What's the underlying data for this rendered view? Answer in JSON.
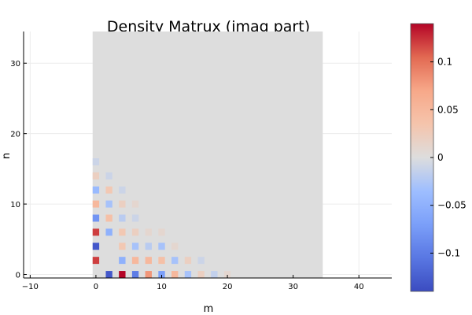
{
  "chart_data": {
    "type": "heatmap",
    "title": "Density Matrux (imag part)",
    "xlabel": "m",
    "ylabel": "n",
    "xlim": [
      -11,
      45
    ],
    "ylim": [
      -0.5,
      34.5
    ],
    "x_ticks": [
      -10,
      0,
      10,
      20,
      30,
      40
    ],
    "y_ticks": [
      0,
      10,
      20,
      30
    ],
    "grid": true,
    "matrix_extent": {
      "m": [
        -0.5,
        34.5
      ],
      "n": [
        -0.5,
        34.5
      ]
    },
    "background_value": 0,
    "colorbar": {
      "colormap": "coolwarm",
      "range": [
        -0.14,
        0.14
      ],
      "ticks": [
        {
          "value": 0.1,
          "label": "0.1"
        },
        {
          "value": 0.05,
          "label": "0.05"
        },
        {
          "value": 0,
          "label": "0"
        },
        {
          "value": -0.05,
          "label": "−0.05"
        },
        {
          "value": -0.1,
          "label": "−0.1"
        }
      ]
    },
    "cells": [
      {
        "m": 0,
        "n": 2,
        "v": 0.12
      },
      {
        "m": 0,
        "n": 4,
        "v": -0.13
      },
      {
        "m": 0,
        "n": 6,
        "v": 0.12
      },
      {
        "m": 0,
        "n": 8,
        "v": -0.08
      },
      {
        "m": 0,
        "n": 10,
        "v": 0.05
      },
      {
        "m": 0,
        "n": 12,
        "v": -0.04
      },
      {
        "m": 0,
        "n": 14,
        "v": 0.02
      },
      {
        "m": 0,
        "n": 16,
        "v": -0.01
      },
      {
        "m": 2,
        "n": 0,
        "v": -0.13
      },
      {
        "m": 2,
        "n": 6,
        "v": -0.05
      },
      {
        "m": 2,
        "n": 8,
        "v": 0.04
      },
      {
        "m": 2,
        "n": 10,
        "v": -0.03
      },
      {
        "m": 2,
        "n": 12,
        "v": 0.03
      },
      {
        "m": 2,
        "n": 14,
        "v": -0.01
      },
      {
        "m": 4,
        "n": 0,
        "v": 0.14
      },
      {
        "m": 4,
        "n": 2,
        "v": -0.05
      },
      {
        "m": 4,
        "n": 4,
        "v": 0.03
      },
      {
        "m": 4,
        "n": 6,
        "v": 0.03
      },
      {
        "m": 4,
        "n": 8,
        "v": -0.02
      },
      {
        "m": 4,
        "n": 10,
        "v": 0.02
      },
      {
        "m": 4,
        "n": 12,
        "v": -0.01
      },
      {
        "m": 6,
        "n": 0,
        "v": -0.1
      },
      {
        "m": 6,
        "n": 2,
        "v": 0.05
      },
      {
        "m": 6,
        "n": 4,
        "v": -0.03
      },
      {
        "m": 6,
        "n": 6,
        "v": 0.02
      },
      {
        "m": 6,
        "n": 8,
        "v": -0.01
      },
      {
        "m": 6,
        "n": 10,
        "v": 0.01
      },
      {
        "m": 8,
        "n": 0,
        "v": 0.08
      },
      {
        "m": 8,
        "n": 2,
        "v": 0.05
      },
      {
        "m": 8,
        "n": 4,
        "v": -0.02
      },
      {
        "m": 8,
        "n": 6,
        "v": 0.01
      },
      {
        "m": 10,
        "n": 0,
        "v": -0.07
      },
      {
        "m": 10,
        "n": 2,
        "v": 0.04
      },
      {
        "m": 10,
        "n": 4,
        "v": -0.03
      },
      {
        "m": 10,
        "n": 6,
        "v": 0.01
      },
      {
        "m": 12,
        "n": 0,
        "v": 0.05
      },
      {
        "m": 12,
        "n": 2,
        "v": -0.03
      },
      {
        "m": 12,
        "n": 4,
        "v": 0.01
      },
      {
        "m": 14,
        "n": 0,
        "v": -0.03
      },
      {
        "m": 14,
        "n": 2,
        "v": 0.02
      },
      {
        "m": 16,
        "n": 0,
        "v": 0.02
      },
      {
        "m": 16,
        "n": 2,
        "v": -0.01
      },
      {
        "m": 18,
        "n": 0,
        "v": -0.015
      },
      {
        "m": 20,
        "n": 0,
        "v": 0.01
      }
    ]
  }
}
